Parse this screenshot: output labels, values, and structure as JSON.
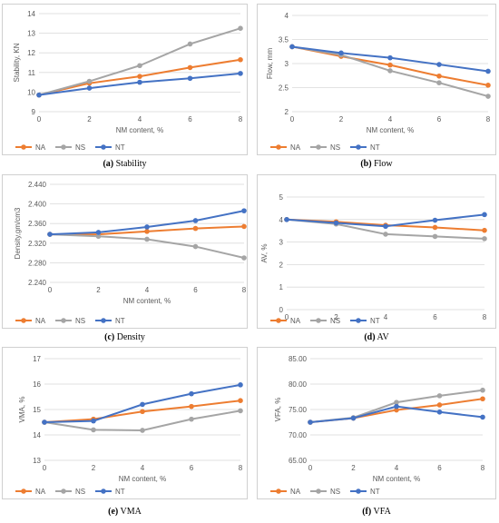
{
  "colors": {
    "NA": "#ED7D31",
    "NS": "#A5A5A5",
    "NT": "#4472C4",
    "grid": "#D9D9D9",
    "text": "#595959"
  },
  "chart_data": [
    {
      "id": "a",
      "type": "line",
      "caption_letter": "(a)",
      "caption_text": " Stability",
      "xlabel": "NM content, %",
      "ylabel": "Stability, KN",
      "x": [
        0,
        2,
        4,
        6,
        8
      ],
      "xticks": [
        "0",
        "2",
        "4",
        "6",
        "8"
      ],
      "ylim": [
        9,
        14
      ],
      "yticks": [
        9,
        10,
        11,
        12,
        13,
        14
      ],
      "ydec": 0,
      "legend": "bottom",
      "series": [
        {
          "name": "NA",
          "values": [
            9.85,
            10.45,
            10.8,
            11.25,
            11.65
          ]
        },
        {
          "name": "NS",
          "values": [
            9.85,
            10.55,
            11.35,
            12.45,
            13.25
          ]
        },
        {
          "name": "NT",
          "values": [
            9.85,
            10.2,
            10.5,
            10.7,
            10.95
          ]
        }
      ]
    },
    {
      "id": "b",
      "type": "line",
      "caption_letter": "(b)",
      "caption_text": " Flow",
      "xlabel": "NM content, %",
      "ylabel": "Flow, mm",
      "x": [
        0,
        2,
        4,
        6,
        8
      ],
      "xticks": [
        "0",
        "2",
        "4",
        "6",
        "8"
      ],
      "ylim": [
        2,
        4
      ],
      "yticks": [
        2,
        2.5,
        3,
        3.5,
        4
      ],
      "ydec": 1,
      "ytick_labels": [
        "2",
        "2.5",
        "3",
        "3.5",
        "4"
      ],
      "legend": "bottom",
      "series": [
        {
          "name": "NA",
          "values": [
            3.35,
            3.15,
            2.97,
            2.74,
            2.55
          ]
        },
        {
          "name": "NS",
          "values": [
            3.35,
            3.18,
            2.85,
            2.6,
            2.32
          ]
        },
        {
          "name": "NT",
          "values": [
            3.35,
            3.22,
            3.12,
            2.98,
            2.84
          ]
        }
      ]
    },
    {
      "id": "c",
      "type": "line",
      "caption_letter": "(c)",
      "caption_text": " Density",
      "xlabel": "NM content, %",
      "ylabel": "Density,gm/cm3",
      "x": [
        0,
        2,
        4,
        6,
        8
      ],
      "xticks": [
        "0",
        "2",
        "4",
        "6",
        "8"
      ],
      "ylim": [
        2.24,
        2.44
      ],
      "yticks": [
        2.24,
        2.28,
        2.32,
        2.36,
        2.4,
        2.44
      ],
      "ydec": 3,
      "legend": "bottom",
      "series": [
        {
          "name": "NA",
          "values": [
            2.338,
            2.338,
            2.344,
            2.35,
            2.354
          ]
        },
        {
          "name": "NS",
          "values": [
            2.338,
            2.334,
            2.328,
            2.313,
            2.29
          ]
        },
        {
          "name": "NT",
          "values": [
            2.338,
            2.342,
            2.353,
            2.366,
            2.386
          ]
        }
      ]
    },
    {
      "id": "d",
      "type": "line",
      "caption_letter": "(d)",
      "caption_text": " AV",
      "xlabel": "",
      "ylabel": "AV, %",
      "x": [
        0,
        2,
        4,
        6,
        8
      ],
      "xticks": [
        "0",
        "2",
        "4",
        "6",
        "8"
      ],
      "ylim": [
        0,
        5
      ],
      "yticks": [
        0,
        1,
        2,
        3,
        4,
        5
      ],
      "ydec": 0,
      "legend": "bottom",
      "series": [
        {
          "name": "NA",
          "values": [
            4.0,
            3.9,
            3.75,
            3.65,
            3.52
          ]
        },
        {
          "name": "NS",
          "values": [
            4.0,
            3.8,
            3.35,
            3.25,
            3.15
          ]
        },
        {
          "name": "NT",
          "values": [
            4.0,
            3.85,
            3.7,
            3.97,
            4.22
          ]
        }
      ]
    },
    {
      "id": "e",
      "type": "line",
      "caption_letter": "(e)",
      "caption_text": " VMA",
      "xlabel": "NM content, %",
      "ylabel": "VMA, %",
      "x": [
        0,
        2,
        4,
        6,
        8
      ],
      "xticks": [
        "0",
        "2",
        "4",
        "6",
        "8"
      ],
      "ylim": [
        13,
        17
      ],
      "yticks": [
        13,
        14,
        15,
        16,
        17
      ],
      "ydec": 0,
      "legend": "bottom",
      "series": [
        {
          "name": "NA",
          "values": [
            14.5,
            14.62,
            14.92,
            15.12,
            15.35
          ]
        },
        {
          "name": "NS",
          "values": [
            14.5,
            14.2,
            14.18,
            14.62,
            14.95
          ]
        },
        {
          "name": "NT",
          "values": [
            14.5,
            14.55,
            15.2,
            15.62,
            15.97
          ]
        }
      ]
    },
    {
      "id": "f",
      "type": "line",
      "caption_letter": "(f)",
      "caption_text": " VFA",
      "xlabel": "NM content, %",
      "ylabel": "VFA, %",
      "x": [
        0,
        2,
        4,
        6,
        8
      ],
      "xticks": [
        "0",
        "2",
        "4",
        "6",
        "8"
      ],
      "ylim": [
        65,
        85
      ],
      "yticks": [
        65,
        70,
        75,
        80,
        85
      ],
      "ydec": 2,
      "legend": "bottom",
      "series": [
        {
          "name": "NA",
          "values": [
            72.5,
            73.3,
            74.9,
            75.9,
            77.1
          ]
        },
        {
          "name": "NS",
          "values": [
            72.5,
            73.4,
            76.4,
            77.7,
            78.8
          ]
        },
        {
          "name": "NT",
          "values": [
            72.5,
            73.3,
            75.6,
            74.5,
            73.5
          ]
        }
      ]
    }
  ]
}
